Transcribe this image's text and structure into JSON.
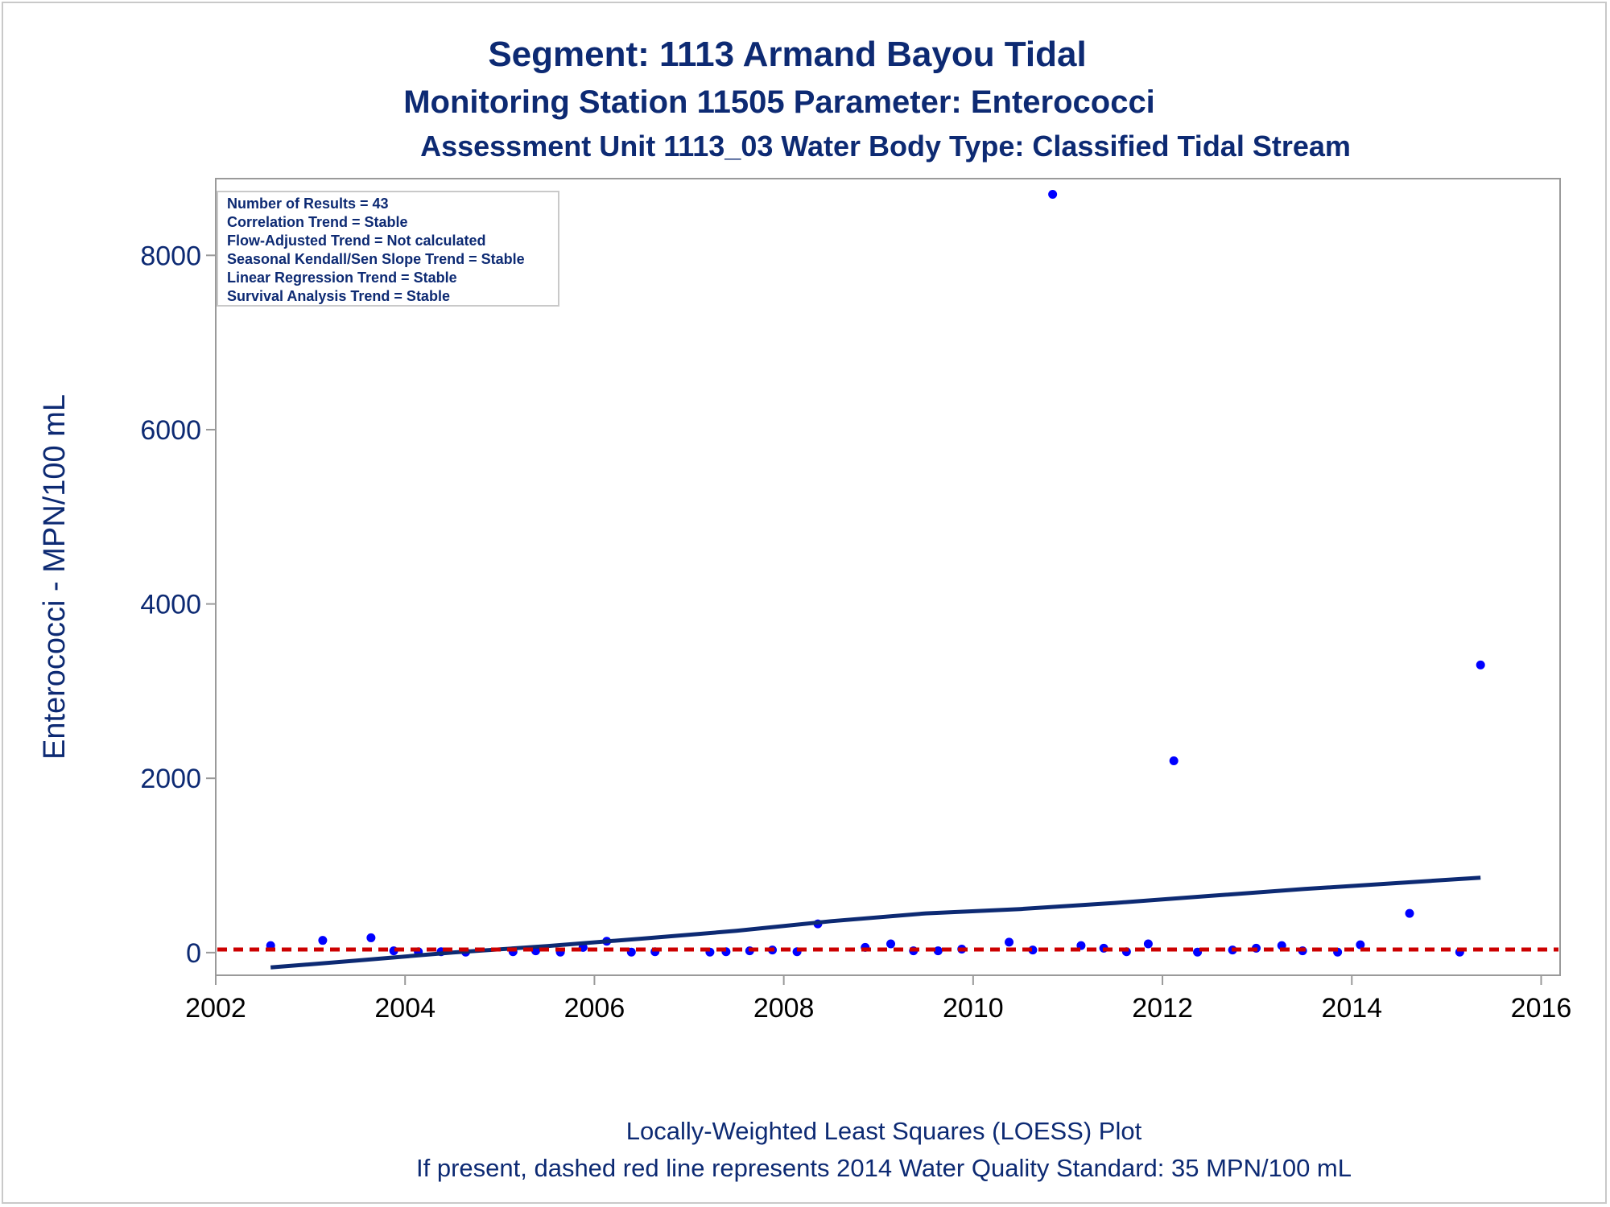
{
  "chart_data": {
    "type": "scatter",
    "title": "Segment: 1113  Armand Bayou Tidal",
    "subtitle": "Monitoring Station 11505 Parameter: Enterococci",
    "subtitle2": "Assessment Unit 1113_03   Water Body Type: Classified Tidal Stream",
    "xlabel": "",
    "ylabel": "Enterococci - MPN/100 mL",
    "xlim": [
      2002,
      2016.2
    ],
    "ylim": [
      -260,
      8880
    ],
    "x_ticks": [
      2002,
      2004,
      2006,
      2008,
      2010,
      2012,
      2014,
      2016
    ],
    "y_ticks": [
      0,
      2000,
      4000,
      6000,
      8000
    ],
    "grid": false,
    "legend_placement": "top-left",
    "stats_box": [
      "Number of Results = 43",
      "Correlation Trend = Stable",
      "Flow-Adjusted Trend = Not calculated",
      "Seasonal Kendall/Sen Slope Trend = Stable",
      "Linear Regression Trend = Stable",
      "Survival Analysis Trend = Stable"
    ],
    "series": [
      {
        "marker": "dot",
        "color": "#0000ff",
        "x": [
          2002.58,
          2003.13,
          2003.64,
          2003.88,
          2004.14,
          2004.38,
          2004.64,
          2005.14,
          2005.38,
          2005.64,
          2005.88,
          2006.13,
          2006.39,
          2006.64,
          2007.22,
          2007.39,
          2007.64,
          2007.88,
          2008.14,
          2008.36,
          2008.86,
          2009.13,
          2009.37,
          2009.63,
          2009.88,
          2010.38,
          2010.63,
          2010.84,
          2011.14,
          2011.38,
          2011.62,
          2011.85,
          2012.12,
          2012.37,
          2012.74,
          2012.99,
          2013.26,
          2013.48,
          2013.85,
          2014.09,
          2014.61,
          2015.14,
          2015.36
        ],
        "y": [
          80,
          140,
          170,
          20,
          10,
          10,
          5,
          10,
          20,
          5,
          60,
          130,
          5,
          10,
          5,
          10,
          20,
          30,
          10,
          330,
          60,
          100,
          20,
          20,
          40,
          120,
          30,
          8700,
          80,
          50,
          10,
          100,
          2200,
          5,
          30,
          50,
          80,
          20,
          5,
          90,
          450,
          5,
          3300
        ]
      },
      {
        "marker": "line",
        "color": "#0d2a73",
        "x": [
          2002.58,
          2003.5,
          2004.5,
          2005.5,
          2006.5,
          2007.5,
          2008.5,
          2009.5,
          2010.5,
          2011.5,
          2012.5,
          2013.5,
          2014.5,
          2015.36
        ],
        "y": [
          -170,
          -90,
          0,
          75,
          160,
          250,
          360,
          450,
          500,
          570,
          650,
          730,
          800,
          860
        ]
      },
      {
        "marker": "dashed-line",
        "color": "#cc0000",
        "x": [
          2002,
          2016.2
        ],
        "y": [
          35,
          35
        ]
      }
    ],
    "footnotes": [
      "Locally-Weighted Least Squares (LOESS) Plot",
      "If present, dashed red line represents 2014 Water Quality Standard: 35 MPN/100 mL"
    ]
  }
}
